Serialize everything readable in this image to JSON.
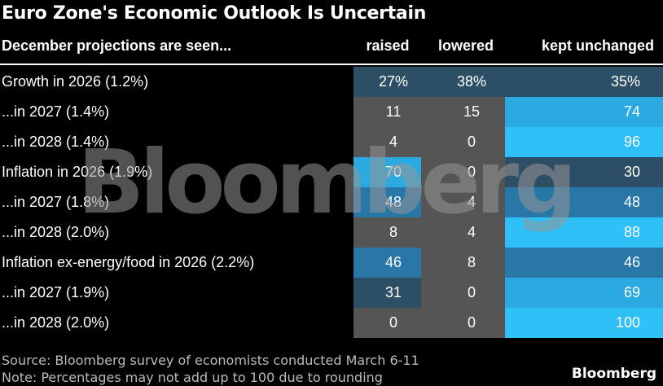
{
  "title": "Euro Zone's Economic Outlook Is Uncertain",
  "header": {
    "first_col": "December projections are seen...",
    "raised": "raised",
    "lowered": "lowered",
    "kept": "kept unchanged"
  },
  "colors": {
    "background": "#000000",
    "lowered_panel": "#555555",
    "row_label_group": "#3b5368",
    "heat_low": "#2d4f66",
    "heat_mid": "#2877a7",
    "heat_high": "#2aaae0",
    "heat_top": "#2fc0f8"
  },
  "chart_data": {
    "type": "table",
    "columns": [
      "raised",
      "lowered",
      "kept unchanged"
    ],
    "rows": [
      {
        "label": "Growth in 2026 (1.2%)",
        "values": [
          "27%",
          "38%",
          "35%"
        ],
        "numeric": [
          27,
          38,
          35
        ]
      },
      {
        "label": "...in 2027 (1.4%)",
        "values": [
          "11",
          "15",
          "74"
        ],
        "numeric": [
          11,
          15,
          74
        ]
      },
      {
        "label": "...in 2028 (1.4%)",
        "values": [
          "4",
          "0",
          "96"
        ],
        "numeric": [
          4,
          0,
          96
        ]
      },
      {
        "label": "Inflation in 2026 (1.9%)",
        "values": [
          "70",
          "0",
          "30"
        ],
        "numeric": [
          70,
          0,
          30
        ]
      },
      {
        "label": "...in 2027 (1.8%)",
        "values": [
          "48",
          "4",
          "48"
        ],
        "numeric": [
          48,
          4,
          48
        ]
      },
      {
        "label": "...in 2028 (2.0%)",
        "values": [
          "8",
          "4",
          "88"
        ],
        "numeric": [
          8,
          4,
          88
        ]
      },
      {
        "label": "Inflation ex-energy/food in 2026 (2.2%)",
        "values": [
          "46",
          "8",
          "46"
        ],
        "numeric": [
          46,
          8,
          46
        ]
      },
      {
        "label": "...in 2027 (1.9%)",
        "values": [
          "31",
          "0",
          "69"
        ],
        "numeric": [
          31,
          0,
          69
        ]
      },
      {
        "label": "...in 2028 (2.0%)",
        "values": [
          "0",
          "0",
          "100"
        ],
        "numeric": [
          0,
          0,
          100
        ]
      }
    ]
  },
  "watermark": "Bloomberg",
  "footnotes": {
    "source": "Source: Bloomberg survey of economists conducted March 6-11",
    "note": "Note: Percentages may not add up to 100 due to rounding"
  },
  "brand": "Bloomberg"
}
